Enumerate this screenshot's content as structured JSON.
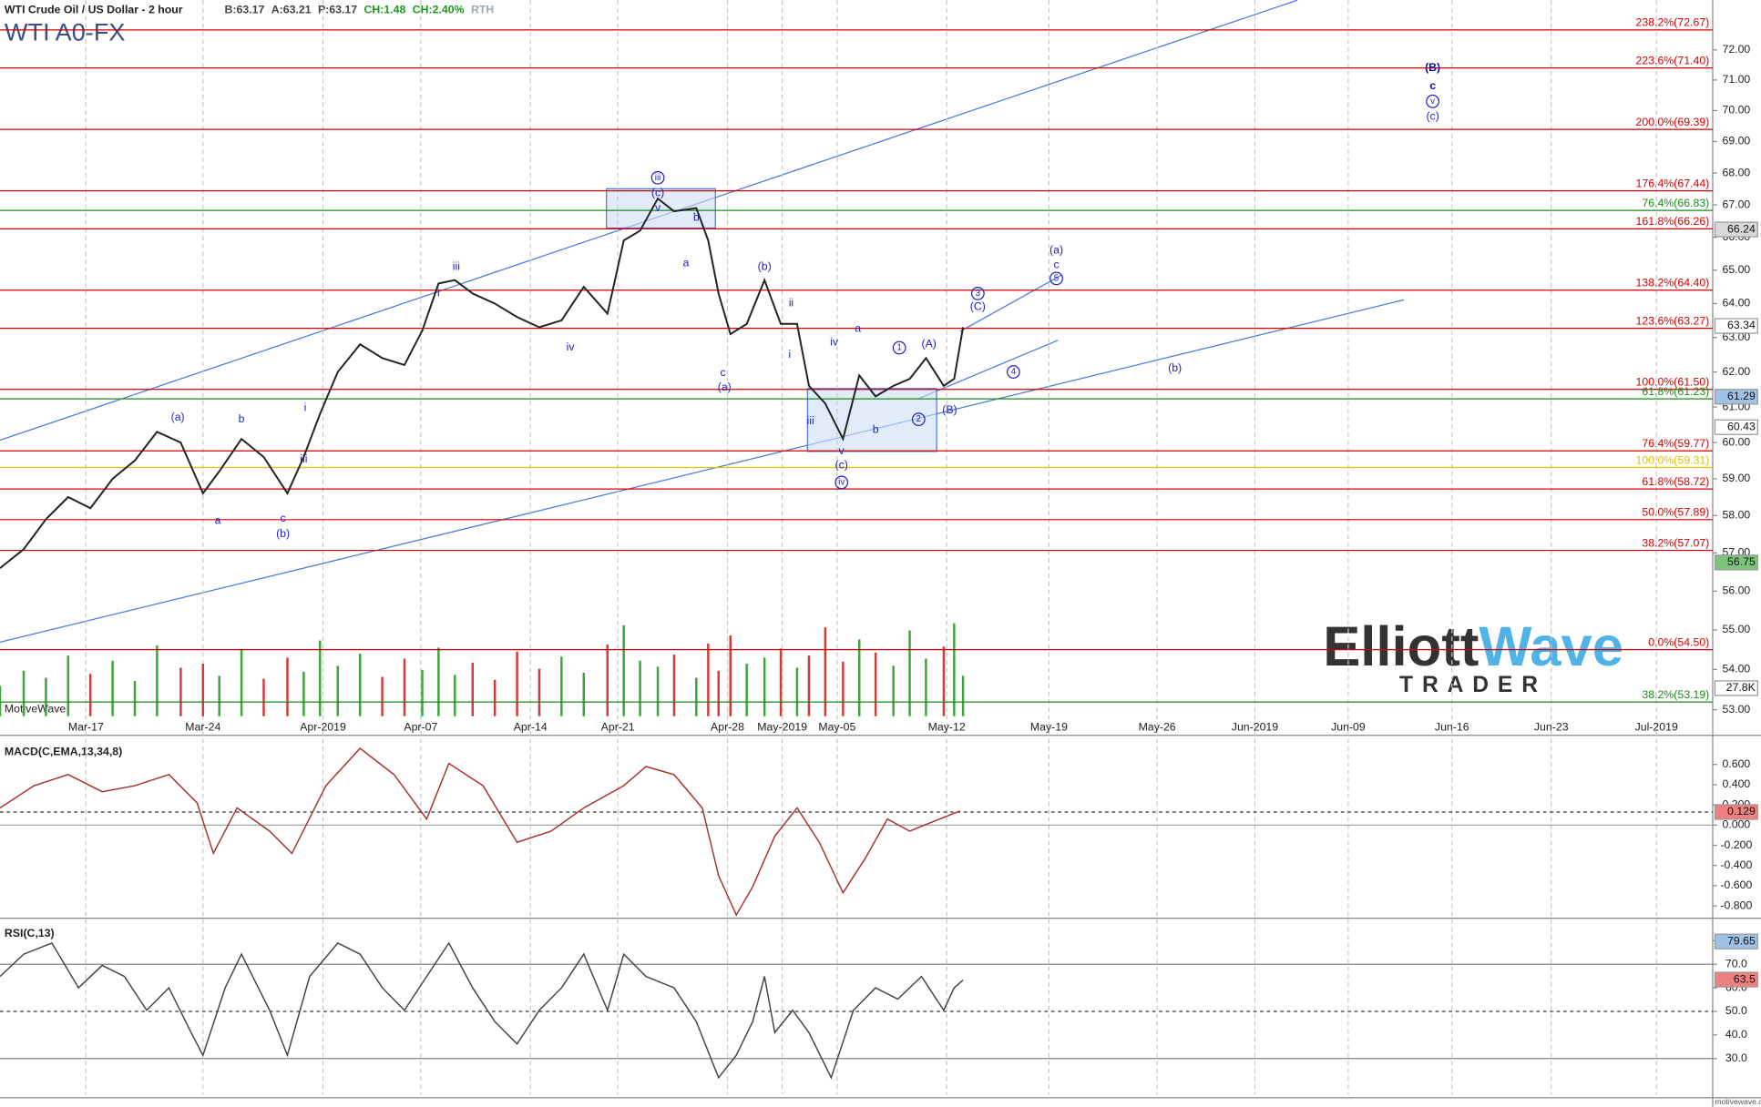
{
  "header": {
    "quote": [
      "B:63.17",
      "A:63.21",
      "P:63.17",
      "CH:1.48",
      "CH:2.40%",
      "RTH"
    ],
    "symbol": "WTI A0-FX",
    "watermark": "MotiveWave",
    "site": "motivewave.com",
    "logo": {
      "word1": "Elliott",
      "word2": "Wave",
      "word3": "TRADER"
    }
  },
  "chart_data": [
    {
      "type": "line",
      "title": "WTI Crude Oil / US Dollar - 2 hour",
      "color": "#222222",
      "log_scale": true,
      "xlim": [
        -5.8,
        109.8
      ],
      "ylim": [
        52.84,
        73.68
      ],
      "xticks": [
        {
          "value": 0,
          "label": "Mar-17"
        },
        {
          "value": 7.9,
          "label": "Mar-24"
        },
        {
          "value": 16,
          "label": "Apr-2019"
        },
        {
          "value": 22.6,
          "label": "Apr-07"
        },
        {
          "value": 30,
          "label": "Apr-14"
        },
        {
          "value": 35.9,
          "label": "Apr-21"
        },
        {
          "value": 43.3,
          "label": "Apr-28"
        },
        {
          "value": 47,
          "label": "May-2019"
        },
        {
          "value": 50.7,
          "label": "May-05"
        },
        {
          "value": 58.1,
          "label": "May-12"
        },
        {
          "value": 65,
          "label": "May-19"
        },
        {
          "value": 72.3,
          "label": "May-26"
        },
        {
          "value": 78.9,
          "label": "Jun-2019"
        },
        {
          "value": 85.2,
          "label": "Jun-09"
        },
        {
          "value": 92.2,
          "label": "Jun-16"
        },
        {
          "value": 98.9,
          "label": "Jun-23"
        },
        {
          "value": 106,
          "label": "Jul-2019"
        }
      ],
      "yticks": [
        {
          "value": 72,
          "label": "72.00"
        },
        {
          "value": 71,
          "label": "71.00"
        },
        {
          "value": 70,
          "label": "70.00"
        },
        {
          "value": 69,
          "label": "69.00"
        },
        {
          "value": 68,
          "label": "68.00"
        },
        {
          "value": 67,
          "label": "67.00"
        },
        {
          "value": 66,
          "label": "66.00"
        },
        {
          "value": 65,
          "label": "65.00"
        },
        {
          "value": 64,
          "label": "64.00"
        },
        {
          "value": 63,
          "label": "63.00"
        },
        {
          "value": 62,
          "label": "62.00"
        },
        {
          "value": 61,
          "label": "61.00"
        },
        {
          "value": 60,
          "label": "60.00"
        },
        {
          "value": 59,
          "label": "59.00"
        },
        {
          "value": 58,
          "label": "58.00"
        },
        {
          "value": 57,
          "label": "57.00"
        },
        {
          "value": 56,
          "label": "56.00"
        },
        {
          "value": 55,
          "label": "55.00"
        },
        {
          "value": 54,
          "label": "54.00"
        },
        {
          "value": 53,
          "label": "53.00"
        }
      ],
      "x": [
        -5.8,
        -4.2,
        -2.7,
        -1.2,
        0.3,
        1.8,
        3.3,
        4.8,
        6.4,
        7.9,
        9.0,
        10.5,
        12.0,
        13.6,
        14.7,
        15.8,
        17.0,
        18.5,
        20.0,
        21.5,
        22.7,
        23.8,
        24.9,
        26.1,
        27.6,
        29.1,
        30.6,
        32.1,
        33.6,
        35.2,
        36.3,
        37.4,
        38.6,
        39.7,
        41.2,
        42.0,
        42.7,
        43.5,
        44.6,
        45.8,
        46.9,
        48.0,
        48.8,
        49.9,
        51.1,
        52.2,
        53.3,
        54.5,
        55.6,
        56.7,
        57.9,
        58.6,
        59.2
      ],
      "values": [
        56.6,
        57.1,
        57.9,
        58.5,
        58.2,
        59.0,
        59.5,
        60.3,
        60.0,
        58.6,
        59.2,
        60.1,
        59.6,
        58.6,
        59.6,
        60.8,
        62.0,
        62.8,
        62.4,
        62.2,
        63.2,
        64.6,
        64.7,
        64.3,
        64.0,
        63.6,
        63.3,
        63.5,
        64.5,
        63.7,
        65.9,
        66.2,
        67.2,
        66.8,
        66.9,
        65.9,
        64.3,
        63.1,
        63.4,
        64.7,
        63.4,
        63.4,
        61.6,
        61.1,
        60.1,
        61.9,
        61.3,
        61.6,
        61.8,
        62.4,
        61.6,
        61.8,
        63.3
      ],
      "volume": [
        30000,
        45000,
        38000,
        60000,
        42000,
        55000,
        35000,
        70000,
        48000,
        52000,
        40000,
        66000,
        37000,
        58000,
        44000,
        75000,
        50000,
        62000,
        39000,
        57000,
        46000,
        68000,
        41000,
        53000,
        36000,
        64000,
        47000,
        59000,
        43000,
        71000,
        90000,
        55000,
        49000,
        61000,
        38000,
        72000,
        45000,
        80000,
        52000,
        58000,
        67000,
        48000,
        60000,
        88000,
        54000,
        76000,
        63000,
        50000,
        85000,
        57000,
        69000,
        92000,
        40000
      ],
      "y2lim": [
        0,
        709000
      ],
      "y2ticks": [
        {
          "value": 27800,
          "label": "27.8K"
        }
      ],
      "price_tags": [
        {
          "value": 66.24,
          "label": "66.24",
          "color": "#d9d9d9"
        },
        {
          "value": 63.34,
          "label": "63.34",
          "color": "#ffffff"
        },
        {
          "value": 61.29,
          "label": "61.29",
          "color": "#9fc3e6"
        },
        {
          "value": 60.43,
          "label": "60.43",
          "color": "#ffffff"
        },
        {
          "value": 56.75,
          "label": "56.75",
          "color": "#7cc47c"
        }
      ],
      "fib_levels": [
        {
          "label": "238.2%(72.67)",
          "value": 72.67,
          "color": "#d40000"
        },
        {
          "label": "223.6%(71.40)",
          "value": 71.4,
          "color": "#d40000"
        },
        {
          "label": "200.0%(69.39)",
          "value": 69.39,
          "color": "#d40000"
        },
        {
          "label": "176.4%(67.44)",
          "value": 67.44,
          "color": "#d40000"
        },
        {
          "label": "76.4%(66.83)",
          "value": 66.83,
          "color": "#1a8a1a"
        },
        {
          "label": "161.8%(66.26)",
          "value": 66.26,
          "color": "#d40000"
        },
        {
          "label": "138.2%(64.40)",
          "value": 64.4,
          "color": "#d40000"
        },
        {
          "label": "123.6%(63.27)",
          "value": 63.27,
          "color": "#d40000"
        },
        {
          "label": "100.0%(61.50)",
          "value": 61.5,
          "color": "#d40000"
        },
        {
          "label": "61.8%(61.23)",
          "value": 61.23,
          "color": "#1a8a1a"
        },
        {
          "label": "76.4%(59.77)",
          "value": 59.77,
          "color": "#d40000"
        },
        {
          "label": "100.0%(59.31)",
          "value": 59.31,
          "color": "#e0c000"
        },
        {
          "label": "61.8%(58.72)",
          "value": 58.72,
          "color": "#d40000"
        },
        {
          "label": "50.0%(57.89)",
          "value": 57.89,
          "color": "#d40000"
        },
        {
          "label": "38.2%(57.07)",
          "value": 57.07,
          "color": "#d40000"
        },
        {
          "label": "0.0%(54.50)",
          "value": 54.5,
          "color": "#d40000"
        },
        {
          "label": "38.2%(53.19)",
          "value": 53.19,
          "color": "#1a8a1a"
        }
      ],
      "annotations": [
        {
          "text": "(B)",
          "x": 90.9,
          "y": 71.4,
          "circled": false,
          "bold": true
        },
        {
          "text": "c",
          "x": 90.9,
          "y": 70.8,
          "circled": false,
          "bold": true
        },
        {
          "text": "v",
          "x": 90.9,
          "y": 70.3,
          "circled": true,
          "bold": false
        },
        {
          "text": "(c)",
          "x": 90.9,
          "y": 69.8,
          "circled": false,
          "bold": false
        },
        {
          "text": "iii",
          "x": 38.6,
          "y": 67.85,
          "circled": true,
          "bold": false
        },
        {
          "text": "(c)",
          "x": 38.6,
          "y": 67.36,
          "circled": false,
          "bold": false
        },
        {
          "text": "v",
          "x": 38.6,
          "y": 66.9,
          "circled": false,
          "bold": false
        },
        {
          "text": "b",
          "x": 41.2,
          "y": 66.6,
          "circled": false,
          "bold": false
        },
        {
          "text": "a",
          "x": 40.5,
          "y": 65.2,
          "circled": false,
          "bold": false
        },
        {
          "text": "iii",
          "x": 25.0,
          "y": 65.1,
          "circled": false,
          "bold": false
        },
        {
          "text": "(b)",
          "x": 45.8,
          "y": 65.1,
          "circled": false,
          "bold": false
        },
        {
          "text": "ii",
          "x": 47.6,
          "y": 64.0,
          "circled": false,
          "bold": false
        },
        {
          "text": "iv",
          "x": 32.7,
          "y": 62.7,
          "circled": false,
          "bold": false
        },
        {
          "text": "i",
          "x": 23.8,
          "y": 64.3,
          "circled": false,
          "bold": false
        },
        {
          "text": "c",
          "x": 43.0,
          "y": 61.97,
          "circled": false,
          "bold": false
        },
        {
          "text": "(a)",
          "x": 43.1,
          "y": 61.55,
          "circled": false,
          "bold": false
        },
        {
          "text": "i",
          "x": 47.5,
          "y": 62.5,
          "circled": false,
          "bold": false
        },
        {
          "text": "iv",
          "x": 50.5,
          "y": 62.85,
          "circled": false,
          "bold": false
        },
        {
          "text": "a",
          "x": 52.1,
          "y": 63.25,
          "circled": false,
          "bold": false
        },
        {
          "text": "1",
          "x": 54.9,
          "y": 62.7,
          "circled": true,
          "bold": false
        },
        {
          "text": "(A)",
          "x": 56.9,
          "y": 62.8,
          "circled": false,
          "bold": false
        },
        {
          "text": "3",
          "x": 60.2,
          "y": 64.3,
          "circled": true,
          "bold": false
        },
        {
          "text": "(C)",
          "x": 60.2,
          "y": 63.9,
          "circled": false,
          "bold": false
        },
        {
          "text": "(a)",
          "x": 65.5,
          "y": 65.6,
          "circled": false,
          "bold": false
        },
        {
          "text": "c",
          "x": 65.5,
          "y": 65.15,
          "circled": false,
          "bold": false
        },
        {
          "text": "5",
          "x": 65.5,
          "y": 64.75,
          "circled": true,
          "bold": false
        },
        {
          "text": "4",
          "x": 62.6,
          "y": 62.0,
          "circled": true,
          "bold": false
        },
        {
          "text": "(b)",
          "x": 73.5,
          "y": 62.1,
          "circled": false,
          "bold": false
        },
        {
          "text": "2",
          "x": 56.2,
          "y": 60.65,
          "circled": true,
          "bold": false
        },
        {
          "text": "(B)",
          "x": 58.3,
          "y": 60.9,
          "circled": false,
          "bold": false
        },
        {
          "text": "b",
          "x": 53.3,
          "y": 60.35,
          "circled": false,
          "bold": false
        },
        {
          "text": "iii",
          "x": 48.9,
          "y": 60.6,
          "circled": false,
          "bold": false
        },
        {
          "text": "v",
          "x": 51.0,
          "y": 59.75,
          "circled": false,
          "bold": false
        },
        {
          "text": "(c)",
          "x": 51.0,
          "y": 59.37,
          "circled": false,
          "bold": false
        },
        {
          "text": "iv",
          "x": 51.0,
          "y": 58.9,
          "circled": true,
          "bold": false
        },
        {
          "text": "(a)",
          "x": 6.2,
          "y": 60.7,
          "circled": false,
          "bold": false
        },
        {
          "text": "b",
          "x": 10.5,
          "y": 60.65,
          "circled": false,
          "bold": false
        },
        {
          "text": "i",
          "x": 14.8,
          "y": 60.97,
          "circled": false,
          "bold": false
        },
        {
          "text": "a",
          "x": 8.9,
          "y": 57.86,
          "circled": false,
          "bold": false
        },
        {
          "text": "c",
          "x": 13.3,
          "y": 57.92,
          "circled": false,
          "bold": false
        },
        {
          "text": "(b)",
          "x": 13.3,
          "y": 57.5,
          "circled": false,
          "bold": false
        },
        {
          "text": "iii",
          "x": 14.7,
          "y": 59.53,
          "circled": false,
          "bold": false
        }
      ]
    },
    {
      "type": "line",
      "title": "MACD(C,EMA,13,34,8)",
      "color": "#a83232",
      "xlim": [
        -5.8,
        109.8
      ],
      "ylim": [
        -0.889,
        0.822
      ],
      "yticks": [
        {
          "value": 0.6,
          "label": "0.600"
        },
        {
          "value": 0.4,
          "label": "0.400"
        },
        {
          "value": 0.2,
          "label": "0.200"
        },
        {
          "value": 0,
          "label": "0.000"
        },
        {
          "value": -0.2,
          "label": "-0.200"
        },
        {
          "value": -0.4,
          "label": "-0.400"
        },
        {
          "value": -0.6,
          "label": "-0.600"
        },
        {
          "value": -0.8,
          "label": "-0.800"
        }
      ],
      "x": [
        -5.8,
        -3.5,
        -1.2,
        1.1,
        3.3,
        5.6,
        7.5,
        8.6,
        10.2,
        12.4,
        13.9,
        16.2,
        18.5,
        20.8,
        23.0,
        24.5,
        26.8,
        29.1,
        31.4,
        33.6,
        36.3,
        37.8,
        39.7,
        41.6,
        42.7,
        43.9,
        45.0,
        46.5,
        48.0,
        49.5,
        51.1,
        52.6,
        54.1,
        55.6,
        57.1,
        59.0
      ],
      "values": [
        0.17,
        0.39,
        0.5,
        0.33,
        0.39,
        0.5,
        0.22,
        -0.28,
        0.17,
        -0.06,
        -0.28,
        0.39,
        0.76,
        0.5,
        0.06,
        0.61,
        0.39,
        -0.17,
        -0.06,
        0.17,
        0.39,
        0.58,
        0.5,
        0.17,
        -0.5,
        -0.89,
        -0.61,
        -0.11,
        0.17,
        -0.17,
        -0.67,
        -0.33,
        0.06,
        -0.06,
        0.03,
        0.14
      ],
      "tags": [
        {
          "value": 0.129,
          "label": "0.129",
          "color": "#f08080"
        }
      ]
    },
    {
      "type": "line",
      "title": "RSI(C,13)",
      "color": "#444444",
      "xlim": [
        -5.8,
        109.8
      ],
      "ylim": [
        14.8,
        87.6
      ],
      "yticks": [
        {
          "value": 80,
          "label": "80.0"
        },
        {
          "value": 70,
          "label": "70.0"
        },
        {
          "value": 60,
          "label": "60.0"
        },
        {
          "value": 50,
          "label": "50.0"
        },
        {
          "value": 40,
          "label": "40.0"
        },
        {
          "value": 30,
          "label": "30.0"
        }
      ],
      "x": [
        -5.8,
        -4.2,
        -2.3,
        -0.5,
        1.1,
        2.6,
        4.1,
        5.6,
        7.1,
        7.9,
        9.4,
        10.5,
        12.4,
        13.6,
        15.1,
        17.0,
        18.5,
        20.0,
        21.5,
        23.0,
        24.5,
        26.1,
        27.6,
        29.1,
        30.6,
        32.1,
        33.6,
        35.2,
        36.3,
        37.8,
        39.7,
        41.2,
        42.7,
        43.9,
        45.0,
        45.8,
        46.5,
        47.7,
        48.8,
        50.3,
        51.8,
        53.3,
        54.8,
        56.4,
        57.9,
        58.6,
        59.2
      ],
      "values": [
        64.8,
        74.3,
        79,
        60,
        69.5,
        64.8,
        50.5,
        60,
        41,
        31.4,
        60,
        74.3,
        50.5,
        31.4,
        64.8,
        79,
        74.3,
        60,
        50.5,
        64.8,
        79,
        60,
        45.7,
        36.2,
        50.5,
        60,
        74.3,
        50.5,
        74.3,
        64.8,
        60,
        45.7,
        21.9,
        31.4,
        45.7,
        64.8,
        41,
        50.5,
        41,
        21.9,
        50.5,
        60,
        55.2,
        64.8,
        50.5,
        60,
        63.3
      ],
      "tags": [
        {
          "value": 79.65,
          "label": "79.65",
          "color": "#9fc3e6"
        },
        {
          "value": 63.5,
          "label": "63.5",
          "color": "#f08080"
        }
      ]
    }
  ]
}
